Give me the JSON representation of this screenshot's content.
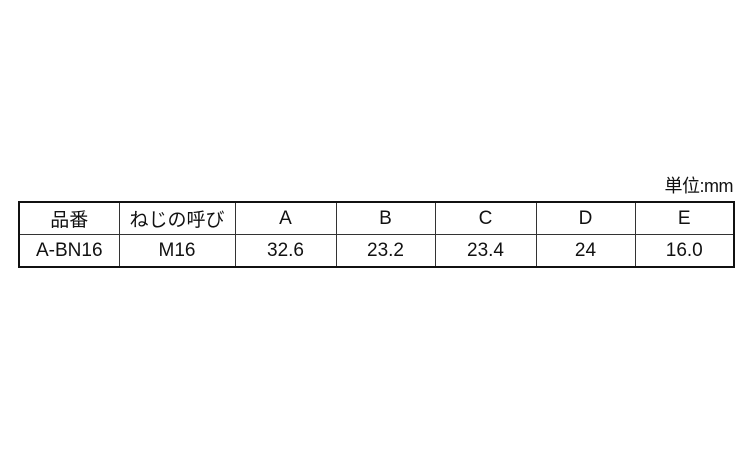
{
  "unit_label": "単位:mm",
  "table": {
    "headers": [
      "品番",
      "ねじの呼び",
      "A",
      "B",
      "C",
      "D",
      "E"
    ],
    "rows": [
      [
        "A-BN16",
        "M16",
        "32.6",
        "23.2",
        "23.4",
        "24",
        "16.0"
      ]
    ]
  }
}
